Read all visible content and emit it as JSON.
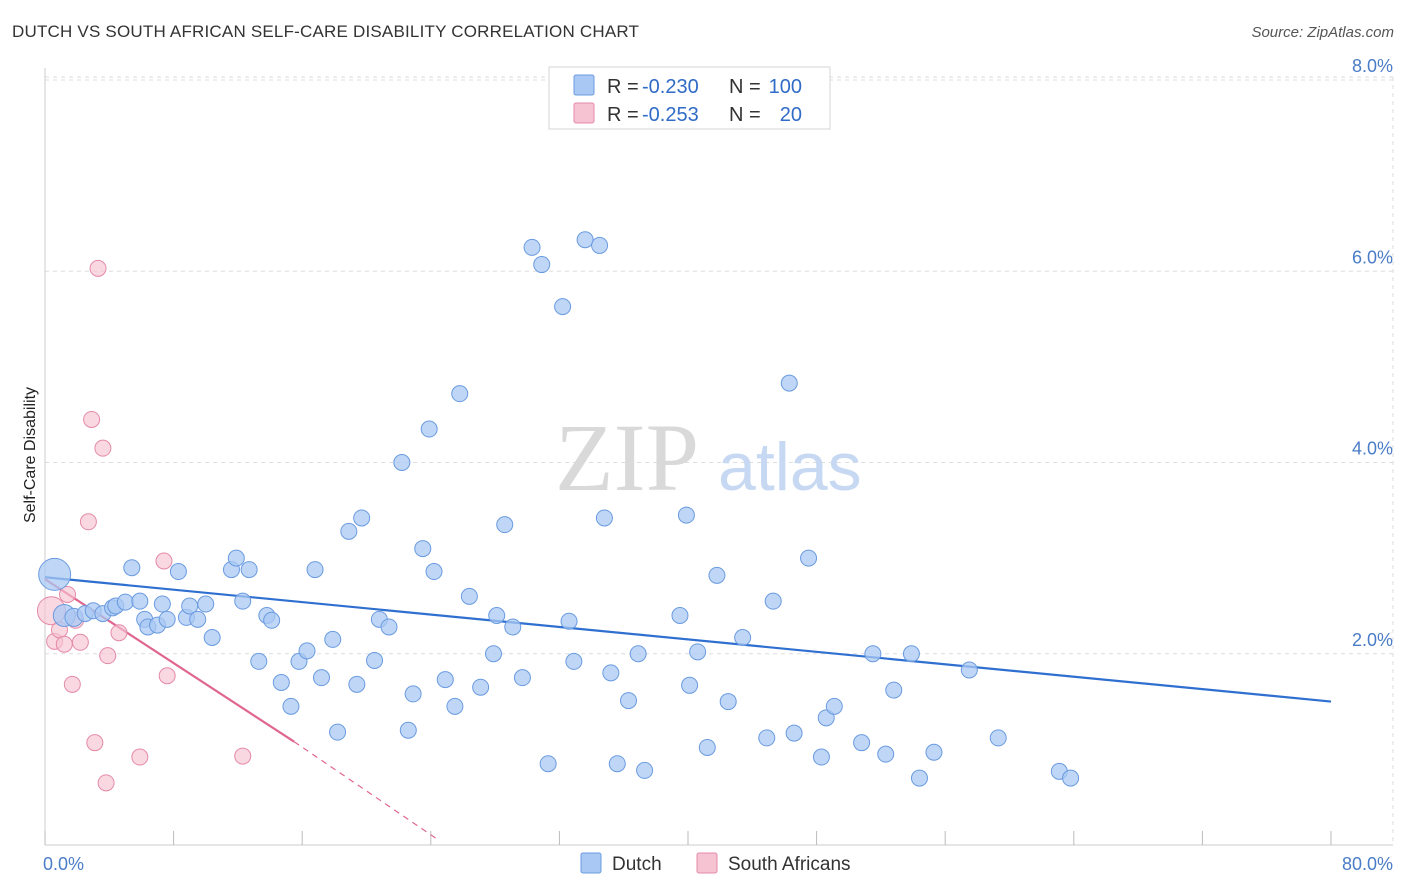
{
  "title": "DUTCH VS SOUTH AFRICAN SELF-CARE DISABILITY CORRELATION CHART",
  "source": "Source: ZipAtlas.com",
  "watermark": {
    "zip": "ZIP",
    "atlas": "atlas"
  },
  "colors": {
    "dutch_fill": "#a9c8f3",
    "dutch_stroke": "#6a9be0",
    "dutch_line": "#2f6fd0",
    "sa_fill": "#f6c3d3",
    "sa_stroke": "#e48aa8",
    "sa_line": "#e0668f",
    "axis_text": "#4a7cc7",
    "grid": "#dddddd"
  },
  "legend": {
    "rows": [
      {
        "r_label": "R =",
        "r_value": "-0.230",
        "n_label": "N =",
        "n_value": "100"
      },
      {
        "r_label": "R =",
        "r_value": "-0.253",
        "n_label": "N =",
        "n_value": "20"
      }
    ]
  },
  "bottom_legend": [
    "Dutch",
    "South Africans"
  ],
  "chart_data": {
    "type": "scatter",
    "title": "DUTCH VS SOUTH AFRICAN SELF-CARE DISABILITY CORRELATION CHART",
    "xlabel": "",
    "ylabel": "Self-Care Disability",
    "xlim": [
      0,
      80
    ],
    "ylim": [
      0,
      8.0
    ],
    "x_tick_labels": [
      "0.0%",
      "80.0%"
    ],
    "y_ticks": [
      2.0,
      4.0,
      6.0,
      8.0
    ],
    "y_tick_labels": [
      "2.0%",
      "4.0%",
      "6.0%",
      "8.0%"
    ],
    "series": [
      {
        "name": "Dutch",
        "r": -0.23,
        "n": 100,
        "trend": {
          "x": [
            0,
            80
          ],
          "y": [
            2.8,
            1.5
          ]
        },
        "points": [
          [
            0.6,
            2.83,
            16
          ],
          [
            1.2,
            2.4,
            11
          ],
          [
            1.8,
            2.38,
            9
          ],
          [
            2.5,
            2.42,
            8
          ],
          [
            3,
            2.45,
            8
          ],
          [
            3.6,
            2.42,
            8
          ],
          [
            4.2,
            2.48,
            8
          ],
          [
            4.4,
            2.5,
            8
          ],
          [
            5,
            2.54,
            8
          ],
          [
            5.4,
            2.9,
            8
          ],
          [
            5.9,
            2.55,
            8
          ],
          [
            6.2,
            2.36,
            8
          ],
          [
            6.4,
            2.28,
            8
          ],
          [
            7,
            2.3,
            8
          ],
          [
            7.3,
            2.52,
            8
          ],
          [
            7.6,
            2.36,
            8
          ],
          [
            8.3,
            2.86,
            8
          ],
          [
            8.8,
            2.38,
            8
          ],
          [
            9,
            2.5,
            8
          ],
          [
            9.5,
            2.36,
            8
          ],
          [
            10,
            2.52,
            8
          ],
          [
            10.4,
            2.17,
            8
          ],
          [
            11.6,
            2.88,
            8
          ],
          [
            11.9,
            3.0,
            8
          ],
          [
            12.3,
            2.55,
            8
          ],
          [
            12.7,
            2.88,
            8
          ],
          [
            13.3,
            1.92,
            8
          ],
          [
            13.8,
            2.4,
            8
          ],
          [
            14.1,
            2.35,
            8
          ],
          [
            14.7,
            1.7,
            8
          ],
          [
            15.3,
            1.45,
            8
          ],
          [
            15.8,
            1.92,
            8
          ],
          [
            16.3,
            2.03,
            8
          ],
          [
            16.8,
            2.88,
            8
          ],
          [
            17.2,
            1.75,
            8
          ],
          [
            17.9,
            2.15,
            8
          ],
          [
            18.2,
            1.18,
            8
          ],
          [
            18.9,
            3.28,
            8
          ],
          [
            19.4,
            1.68,
            8
          ],
          [
            19.7,
            3.42,
            8
          ],
          [
            20.5,
            1.93,
            8
          ],
          [
            20.8,
            2.36,
            8
          ],
          [
            21.4,
            2.28,
            8
          ],
          [
            22.2,
            4.0,
            8
          ],
          [
            22.6,
            1.2,
            8
          ],
          [
            22.9,
            1.58,
            8
          ],
          [
            23.5,
            3.1,
            8
          ],
          [
            23.9,
            4.35,
            8
          ],
          [
            24.2,
            2.86,
            8
          ],
          [
            24.9,
            1.73,
            8
          ],
          [
            25.5,
            1.45,
            8
          ],
          [
            25.8,
            4.72,
            8
          ],
          [
            26.4,
            2.6,
            8
          ],
          [
            27.1,
            1.65,
            8
          ],
          [
            27.9,
            2.0,
            8
          ],
          [
            28.1,
            2.4,
            8
          ],
          [
            28.6,
            3.35,
            8
          ],
          [
            29.1,
            2.28,
            8
          ],
          [
            29.7,
            1.75,
            8
          ],
          [
            30.3,
            6.25,
            8
          ],
          [
            30.9,
            6.07,
            8
          ],
          [
            31.3,
            0.85,
            8
          ],
          [
            32.2,
            5.63,
            8
          ],
          [
            32.6,
            2.34,
            8
          ],
          [
            32.9,
            1.92,
            8
          ],
          [
            33.6,
            6.33,
            8
          ],
          [
            34.5,
            6.27,
            8
          ],
          [
            34.8,
            3.42,
            8
          ],
          [
            35.2,
            1.8,
            8
          ],
          [
            35.6,
            0.85,
            8
          ],
          [
            36.3,
            1.51,
            8
          ],
          [
            36.9,
            2.0,
            8
          ],
          [
            37.3,
            0.78,
            8
          ],
          [
            39.5,
            2.4,
            8
          ],
          [
            39.9,
            3.45,
            8
          ],
          [
            40.1,
            1.67,
            8
          ],
          [
            40.6,
            2.02,
            8
          ],
          [
            41.2,
            1.02,
            8
          ],
          [
            41.8,
            2.82,
            8
          ],
          [
            42.5,
            1.5,
            8
          ],
          [
            43.4,
            2.17,
            8
          ],
          [
            44.9,
            1.12,
            8
          ],
          [
            45.3,
            2.55,
            8
          ],
          [
            46.3,
            4.83,
            8
          ],
          [
            46.6,
            1.17,
            8
          ],
          [
            47.5,
            3.0,
            8
          ],
          [
            48.3,
            0.92,
            8
          ],
          [
            48.6,
            1.33,
            8
          ],
          [
            49.1,
            1.45,
            8
          ],
          [
            50.8,
            1.07,
            8
          ],
          [
            51.5,
            2.0,
            8
          ],
          [
            52.3,
            0.95,
            8
          ],
          [
            52.8,
            1.62,
            8
          ],
          [
            53.9,
            2.0,
            8
          ],
          [
            54.4,
            0.7,
            8
          ],
          [
            55.3,
            0.97,
            8
          ],
          [
            57.5,
            1.83,
            8
          ],
          [
            59.3,
            1.12,
            8
          ],
          [
            63.1,
            0.77,
            8
          ],
          [
            63.8,
            0.7,
            8
          ]
        ]
      },
      {
        "name": "South Africans",
        "r": -0.253,
        "n": 20,
        "trend": {
          "x": [
            0,
            15.5
          ],
          "y": [
            2.78,
            1.08
          ],
          "dashed_to": {
            "x": 24.5,
            "y": 0.05
          }
        },
        "points": [
          [
            0.4,
            2.45,
            14
          ],
          [
            0.6,
            2.13,
            8
          ],
          [
            0.9,
            2.25,
            8
          ],
          [
            1.2,
            2.1,
            8
          ],
          [
            1.4,
            2.62,
            8
          ],
          [
            1.7,
            1.68,
            8
          ],
          [
            1.9,
            2.35,
            8
          ],
          [
            2.2,
            2.12,
            8
          ],
          [
            2.7,
            3.38,
            8
          ],
          [
            2.9,
            4.45,
            8
          ],
          [
            3.1,
            1.07,
            8
          ],
          [
            3.3,
            6.03,
            8
          ],
          [
            3.6,
            4.15,
            8
          ],
          [
            3.8,
            0.65,
            8
          ],
          [
            3.9,
            1.98,
            8
          ],
          [
            4.6,
            2.22,
            8
          ],
          [
            5.9,
            0.92,
            8
          ],
          [
            7.4,
            2.97,
            8
          ],
          [
            7.6,
            1.77,
            8
          ],
          [
            12.3,
            0.93,
            8
          ]
        ]
      }
    ]
  }
}
